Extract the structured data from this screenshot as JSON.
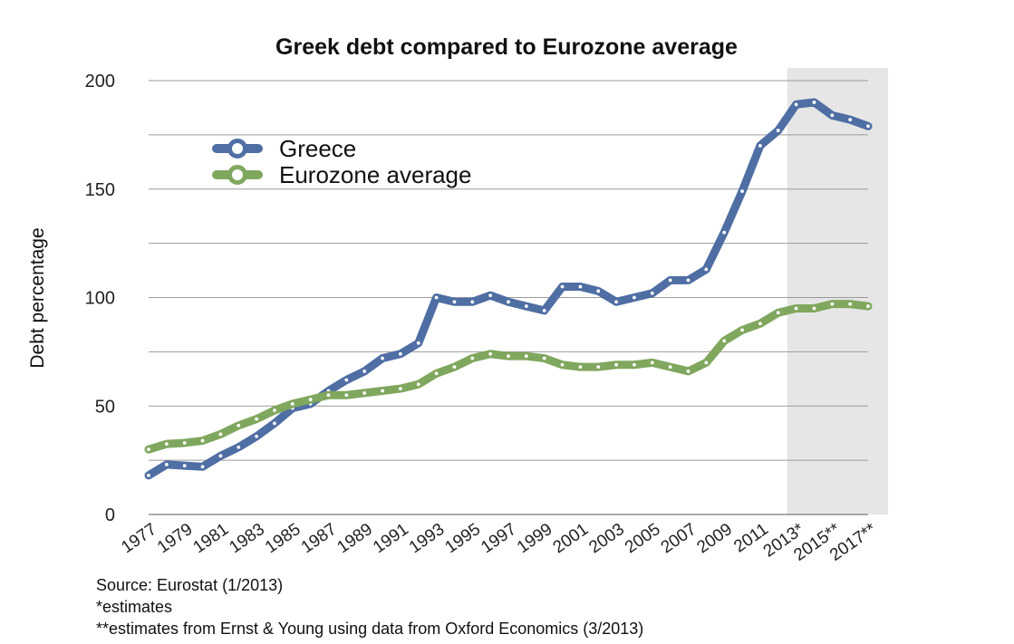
{
  "chart_data": {
    "type": "line",
    "title": "Greek debt compared to Eurozone average",
    "ylabel": "Debt percentage",
    "xlabel": "",
    "ylim": [
      0,
      200
    ],
    "yticks": [
      "0",
      "50",
      "100",
      "150",
      "200"
    ],
    "x": [
      1977,
      1978,
      1979,
      1980,
      1981,
      1982,
      1983,
      1984,
      1985,
      1986,
      1987,
      1988,
      1989,
      1990,
      1991,
      1992,
      1993,
      1994,
      1995,
      1996,
      1997,
      1998,
      1999,
      2000,
      2001,
      2002,
      2003,
      2004,
      2005,
      2006,
      2007,
      2008,
      2009,
      2010,
      2011,
      2012,
      2013,
      2014,
      2015,
      2016,
      2017
    ],
    "xtick_labels": [
      "1977",
      "1979",
      "1981",
      "1983",
      "1985",
      "1987",
      "1989",
      "1991",
      "1993",
      "1995",
      "1997",
      "1999",
      "2001",
      "2003",
      "2005",
      "2007",
      "2009",
      "2011",
      "2013*",
      "2015**",
      "2017**"
    ],
    "estimate_region_start": 2012.5,
    "series": [
      {
        "name": "Greece",
        "color": "#4f6ea3",
        "values": [
          18,
          23,
          22.5,
          22,
          27,
          31,
          36,
          42,
          49,
          51,
          57,
          62,
          66,
          72,
          74,
          79,
          100,
          98,
          98,
          101,
          98,
          96,
          94,
          105,
          105,
          103,
          98,
          100,
          102,
          108,
          108,
          113,
          130,
          149,
          170,
          177,
          189,
          190,
          184,
          182,
          179
        ]
      },
      {
        "name": "Eurozone average",
        "color": "#80a75e",
        "values": [
          30,
          32.5,
          33,
          34,
          37,
          41,
          44,
          48,
          51,
          53,
          55,
          55,
          56,
          57,
          58,
          60,
          65,
          68,
          72,
          74,
          73,
          73,
          72,
          69,
          68,
          68,
          69,
          69,
          70,
          68,
          66,
          70,
          80,
          85,
          88,
          93,
          95,
          95,
          97,
          97,
          96
        ]
      }
    ],
    "legend_placement": "top-left",
    "grid": true
  },
  "notes": {
    "source": "Source: Eurostat (1/2013)",
    "estimates": "*estimates",
    "estimates2": "**estimates from Ernst & Young using data from Oxford Economics (3/2013)"
  }
}
